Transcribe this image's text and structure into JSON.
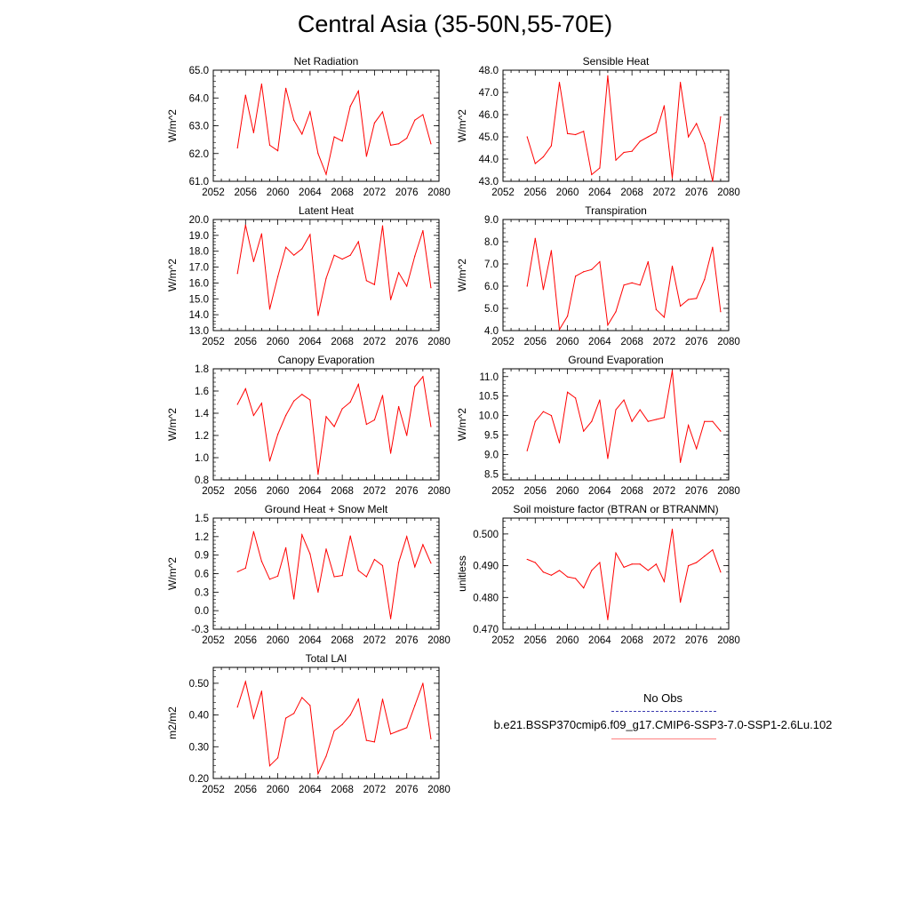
{
  "title": "Central Asia (35-50N,55-70E)",
  "colors": {
    "series": "#ff0000",
    "axis": "#000000",
    "obs_line": "#3b3bb0",
    "case_line": "#ff8080"
  },
  "legend": {
    "obs_label": "No Obs",
    "case_label": "b.e21.BSSP370cmip6.f09_g17.CMIP6-SSP3-7.0-SSP1-2.6Lu.102"
  },
  "chart_data": [
    {
      "type": "line",
      "title": "Net Radiation",
      "ylabel": "W/m^2",
      "xlim": [
        2052,
        2080
      ],
      "ylim": [
        61.0,
        65.0
      ],
      "xticks": [
        "2052",
        "2056",
        "2060",
        "2064",
        "2068",
        "2072",
        "2076",
        "2080"
      ],
      "yticks": [
        "61.0",
        "62.0",
        "63.0",
        "64.0",
        "65.0"
      ],
      "x": [
        2055,
        2056,
        2057,
        2058,
        2059,
        2060,
        2061,
        2062,
        2063,
        2064,
        2065,
        2066,
        2067,
        2068,
        2069,
        2070,
        2071,
        2072,
        2073,
        2074,
        2075,
        2076,
        2077,
        2078,
        2079
      ],
      "values": [
        62.2,
        64.1,
        62.75,
        64.5,
        62.3,
        62.1,
        64.35,
        63.2,
        62.7,
        63.5,
        62.0,
        61.25,
        62.6,
        62.45,
        63.7,
        64.25,
        61.9,
        63.1,
        63.5,
        62.3,
        62.35,
        62.55,
        63.2,
        63.4,
        62.35
      ]
    },
    {
      "type": "line",
      "title": "Sensible Heat",
      "ylabel": "W/m^2",
      "xlim": [
        2052,
        2080
      ],
      "ylim": [
        43.0,
        48.0
      ],
      "xticks": [
        "2052",
        "2056",
        "2060",
        "2064",
        "2068",
        "2072",
        "2076",
        "2080"
      ],
      "yticks": [
        "43.0",
        "44.0",
        "45.0",
        "46.0",
        "47.0",
        "48.0"
      ],
      "x": [
        2055,
        2056,
        2057,
        2058,
        2059,
        2060,
        2061,
        2062,
        2063,
        2064,
        2065,
        2066,
        2067,
        2068,
        2069,
        2070,
        2071,
        2072,
        2073,
        2074,
        2075,
        2076,
        2077,
        2078,
        2079
      ],
      "values": [
        45.0,
        43.8,
        44.1,
        44.6,
        47.45,
        45.15,
        45.1,
        45.25,
        43.3,
        43.6,
        47.75,
        43.95,
        44.3,
        44.35,
        44.8,
        45.0,
        45.2,
        46.4,
        43.15,
        47.45,
        45.0,
        45.6,
        44.7,
        43.0,
        45.9
      ]
    },
    {
      "type": "line",
      "title": "Latent Heat",
      "ylabel": "W/m^2",
      "xlim": [
        2052,
        2080
      ],
      "ylim": [
        13.0,
        20.0
      ],
      "xticks": [
        "2052",
        "2056",
        "2060",
        "2064",
        "2068",
        "2072",
        "2076",
        "2080"
      ],
      "yticks": [
        "13.0",
        "14.0",
        "15.0",
        "16.0",
        "17.0",
        "18.0",
        "19.0",
        "20.0"
      ],
      "x": [
        2055,
        2056,
        2057,
        2058,
        2059,
        2060,
        2061,
        2062,
        2063,
        2064,
        2065,
        2066,
        2067,
        2068,
        2069,
        2070,
        2071,
        2072,
        2073,
        2074,
        2075,
        2076,
        2077,
        2078,
        2079
      ],
      "values": [
        16.6,
        19.65,
        17.35,
        19.1,
        14.35,
        16.4,
        18.25,
        17.75,
        18.15,
        19.05,
        13.95,
        16.3,
        17.75,
        17.5,
        17.75,
        18.6,
        16.15,
        15.9,
        19.6,
        14.95,
        16.65,
        15.8,
        17.7,
        19.3,
        15.7
      ]
    },
    {
      "type": "line",
      "title": "Transpiration",
      "ylabel": "W/m^2",
      "xlim": [
        2052,
        2080
      ],
      "ylim": [
        4.0,
        9.0
      ],
      "xticks": [
        "2052",
        "2056",
        "2060",
        "2064",
        "2068",
        "2072",
        "2076",
        "2080"
      ],
      "yticks": [
        "4.0",
        "5.0",
        "6.0",
        "7.0",
        "8.0",
        "9.0"
      ],
      "x": [
        2055,
        2056,
        2057,
        2058,
        2059,
        2060,
        2061,
        2062,
        2063,
        2064,
        2065,
        2066,
        2067,
        2068,
        2069,
        2070,
        2071,
        2072,
        2073,
        2074,
        2075,
        2076,
        2077,
        2078,
        2079
      ],
      "values": [
        6.0,
        8.15,
        5.85,
        7.6,
        4.05,
        4.65,
        6.45,
        6.65,
        6.75,
        7.1,
        4.25,
        4.85,
        6.05,
        6.15,
        6.05,
        7.1,
        4.95,
        4.6,
        6.9,
        5.1,
        5.4,
        5.45,
        6.3,
        7.75,
        4.85
      ]
    },
    {
      "type": "line",
      "title": "Canopy Evaporation",
      "ylabel": "W/m^2",
      "xlim": [
        2052,
        2080
      ],
      "ylim": [
        0.8,
        1.8
      ],
      "xticks": [
        "2052",
        "2056",
        "2060",
        "2064",
        "2068",
        "2072",
        "2076",
        "2080"
      ],
      "yticks": [
        "0.8",
        "1.0",
        "1.2",
        "1.4",
        "1.6",
        "1.8"
      ],
      "x": [
        2055,
        2056,
        2057,
        2058,
        2059,
        2060,
        2061,
        2062,
        2063,
        2064,
        2065,
        2066,
        2067,
        2068,
        2069,
        2070,
        2071,
        2072,
        2073,
        2074,
        2075,
        2076,
        2077,
        2078,
        2079
      ],
      "values": [
        1.48,
        1.62,
        1.38,
        1.49,
        0.97,
        1.21,
        1.38,
        1.51,
        1.57,
        1.52,
        0.85,
        1.37,
        1.28,
        1.44,
        1.5,
        1.66,
        1.3,
        1.34,
        1.56,
        1.04,
        1.46,
        1.2,
        1.64,
        1.73,
        1.28
      ]
    },
    {
      "type": "line",
      "title": "Ground Evaporation",
      "ylabel": "W/m^2",
      "xlim": [
        2052,
        2080
      ],
      "ylim": [
        8.35,
        11.2
      ],
      "xticks": [
        "2052",
        "2056",
        "2060",
        "2064",
        "2068",
        "2072",
        "2076",
        "2080"
      ],
      "yticks": [
        "8.5",
        "9.0",
        "9.5",
        "10.0",
        "10.5",
        "11.0"
      ],
      "x": [
        2055,
        2056,
        2057,
        2058,
        2059,
        2060,
        2061,
        2062,
        2063,
        2064,
        2065,
        2066,
        2067,
        2068,
        2069,
        2070,
        2071,
        2072,
        2073,
        2074,
        2075,
        2076,
        2077,
        2078,
        2079
      ],
      "values": [
        9.1,
        9.85,
        10.1,
        10.0,
        9.3,
        10.6,
        10.45,
        9.6,
        9.85,
        10.4,
        8.9,
        10.15,
        10.4,
        9.85,
        10.15,
        9.85,
        9.9,
        9.95,
        11.15,
        8.8,
        9.75,
        9.15,
        9.85,
        9.85,
        9.6
      ]
    },
    {
      "type": "line",
      "title": "Ground Heat + Snow Melt",
      "ylabel": "W/m^2",
      "xlim": [
        2052,
        2080
      ],
      "ylim": [
        -0.3,
        1.5
      ],
      "xticks": [
        "2052",
        "2056",
        "2060",
        "2064",
        "2068",
        "2072",
        "2076",
        "2080"
      ],
      "yticks": [
        "-0.3",
        "0.0",
        "0.3",
        "0.6",
        "0.9",
        "1.2",
        "1.5"
      ],
      "x": [
        2055,
        2056,
        2057,
        2058,
        2059,
        2060,
        2061,
        2062,
        2063,
        2064,
        2065,
        2066,
        2067,
        2068,
        2069,
        2070,
        2071,
        2072,
        2073,
        2074,
        2075,
        2076,
        2077,
        2078,
        2079
      ],
      "values": [
        0.63,
        0.69,
        1.28,
        0.8,
        0.51,
        0.56,
        1.02,
        0.19,
        1.23,
        0.92,
        0.3,
        1.0,
        0.55,
        0.57,
        1.21,
        0.65,
        0.55,
        0.83,
        0.73,
        -0.13,
        0.78,
        1.2,
        0.71,
        1.07,
        0.77
      ]
    },
    {
      "type": "line",
      "title": "Soil moisture factor (BTRAN or BTRANMN)",
      "ylabel": "unitless",
      "xlim": [
        2052,
        2080
      ],
      "ylim": [
        0.47,
        0.505
      ],
      "xticks": [
        "2052",
        "2056",
        "2060",
        "2064",
        "2068",
        "2072",
        "2076",
        "2080"
      ],
      "yticks": [
        "0.470",
        "0.480",
        "0.490",
        "0.500"
      ],
      "x": [
        2055,
        2056,
        2057,
        2058,
        2059,
        2060,
        2061,
        2062,
        2063,
        2064,
        2065,
        2066,
        2067,
        2068,
        2069,
        2070,
        2071,
        2072,
        2073,
        2074,
        2075,
        2076,
        2077,
        2078,
        2079
      ],
      "values": [
        0.492,
        0.491,
        0.488,
        0.487,
        0.4885,
        0.4865,
        0.486,
        0.483,
        0.4885,
        0.491,
        0.473,
        0.494,
        0.4895,
        0.4905,
        0.4905,
        0.4885,
        0.4905,
        0.485,
        0.5015,
        0.4785,
        0.49,
        0.491,
        0.493,
        0.495,
        0.488
      ]
    },
    {
      "type": "line",
      "title": "Total LAI",
      "ylabel": "m2/m2",
      "xlim": [
        2052,
        2080
      ],
      "ylim": [
        0.2,
        0.55
      ],
      "xticks": [
        "2052",
        "2056",
        "2060",
        "2064",
        "2068",
        "2072",
        "2076",
        "2080"
      ],
      "yticks": [
        "0.20",
        "0.30",
        "0.40",
        "0.50"
      ],
      "x": [
        2055,
        2056,
        2057,
        2058,
        2059,
        2060,
        2061,
        2062,
        2063,
        2064,
        2065,
        2066,
        2067,
        2068,
        2069,
        2070,
        2071,
        2072,
        2073,
        2074,
        2075,
        2076,
        2077,
        2078,
        2079
      ],
      "values": [
        0.425,
        0.505,
        0.39,
        0.475,
        0.24,
        0.265,
        0.39,
        0.405,
        0.455,
        0.43,
        0.215,
        0.27,
        0.35,
        0.37,
        0.4,
        0.45,
        0.32,
        0.315,
        0.45,
        0.34,
        0.35,
        0.36,
        0.43,
        0.5,
        0.325
      ]
    }
  ]
}
